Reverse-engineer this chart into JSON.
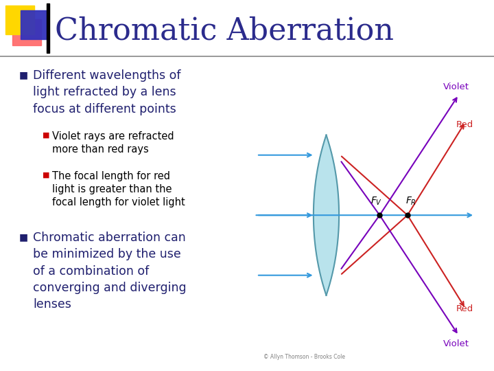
{
  "title": "Chromatic Aberration",
  "title_color": "#2B2B8C",
  "title_fontsize": 32,
  "bg_color": "#FFFFFF",
  "bullet1_text": "Different wavelengths of\nlight refracted by a lens\nfocus at different points",
  "sub_bullet1": "Violet rays are refracted\nmore than red rays",
  "sub_bullet2": "The focal length for red\nlight is greater than the\nfocal length for violet light",
  "bullet2_text": "Chromatic aberration can\nbe minimized by the use\nof a combination of\nconverging and diverging\nlenses",
  "bullet_color": "#1F1F6E",
  "sub_bullet_color": "#000000",
  "red_bullet": "#CC0000",
  "navy_bullet": "#1F1F6E",
  "header_line_color": "#888888",
  "logo_yellow": "#FFD700",
  "logo_red": "#FF6666",
  "logo_blue": "#3333BB",
  "caption": "© Allyn Thomson - Brooks Cole",
  "lens_color": "#A8DDE8",
  "lens_edge_color": "#5599AA",
  "ray_blue": "#3399DD",
  "ray_red": "#CC2222",
  "ray_violet": "#7700BB"
}
